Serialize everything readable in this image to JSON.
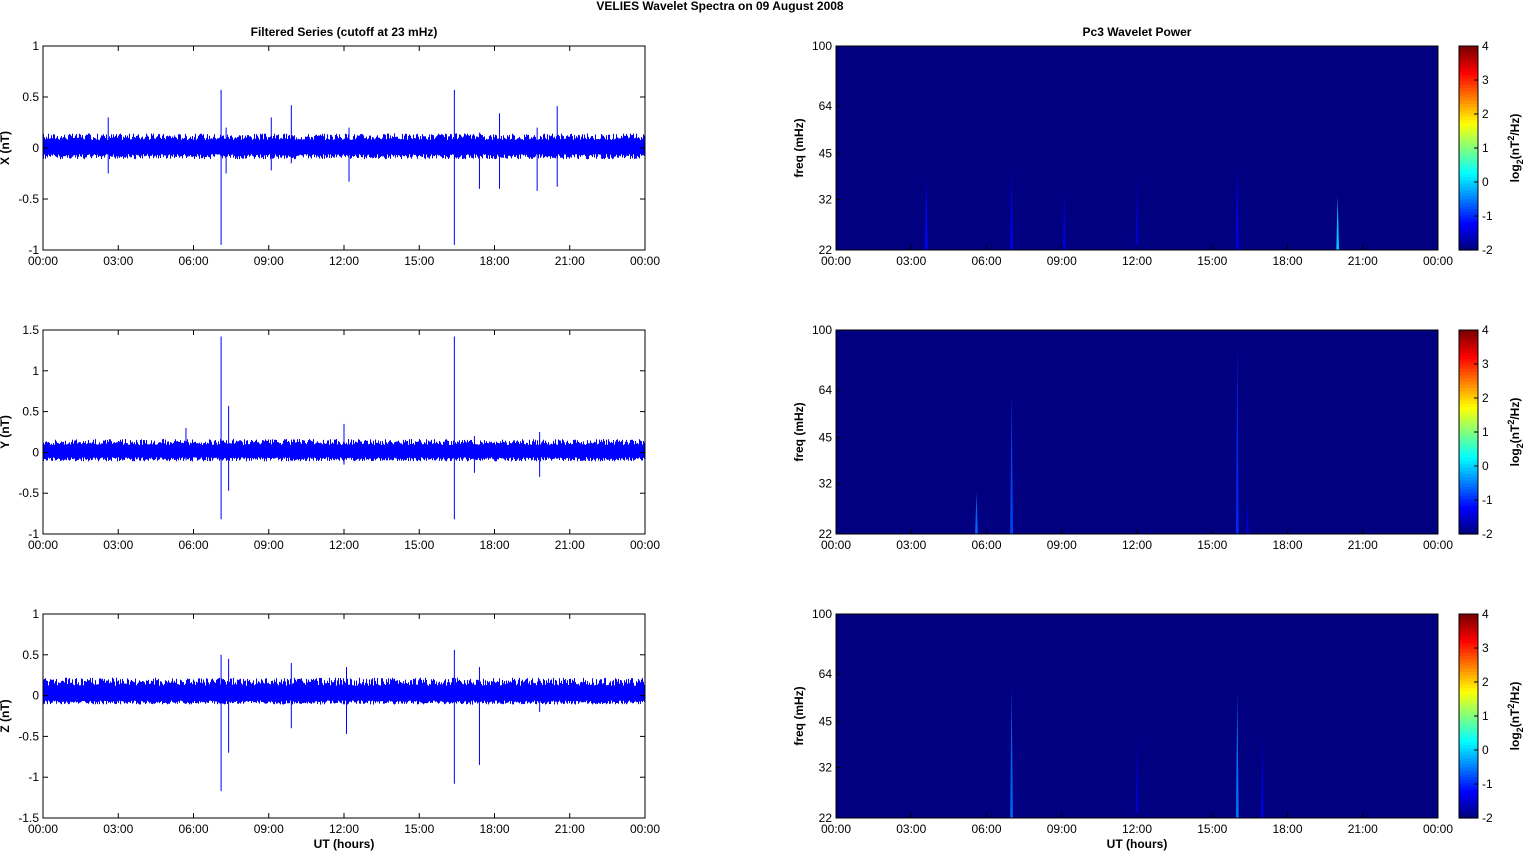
{
  "figure": {
    "suptitle": "VELIES Wavelet Spectra on 09 August    2008",
    "left_title": "Filtered Series (cutoff at 23 mHz)",
    "right_title": "Pc3 Wavelet Power",
    "xlabel": "UT (hours)",
    "time_ticks": [
      "00:00",
      "03:00",
      "06:00",
      "09:00",
      "12:00",
      "15:00",
      "18:00",
      "21:00",
      "00:00"
    ],
    "freq_ylabel": "freq (mHz)",
    "freq_ticks": [
      "100",
      "64",
      "45",
      "32",
      "22"
    ],
    "colorbar_label": "log2(nT2/Hz)",
    "colorbar_ticks": [
      "4",
      "3",
      "2",
      "1",
      "0",
      "-1",
      "-2"
    ],
    "colors": {
      "series": "#0000ff",
      "spectrum_background": "#00008f"
    }
  },
  "chart_data": [
    {
      "type": "line",
      "panel": "X",
      "ylabel": "X (nT)",
      "ylim": [
        -1,
        1
      ],
      "yticks": [
        "1",
        "0.5",
        "0",
        "-0.5",
        "-1"
      ],
      "xlim_hours": [
        0,
        24
      ],
      "noise_band": [
        -0.1,
        0.13
      ],
      "spikes": [
        {
          "t": 2.6,
          "max": 0.3,
          "min": -0.25
        },
        {
          "t": 7.1,
          "max": 0.57,
          "min": -0.95
        },
        {
          "t": 7.3,
          "max": 0.2,
          "min": -0.25
        },
        {
          "t": 9.1,
          "max": 0.3,
          "min": -0.22
        },
        {
          "t": 9.9,
          "max": 0.42,
          "min": -0.15
        },
        {
          "t": 12.2,
          "max": 0.2,
          "min": -0.33
        },
        {
          "t": 16.4,
          "max": 0.57,
          "min": -0.95
        },
        {
          "t": 17.4,
          "max": 0.15,
          "min": -0.4
        },
        {
          "t": 18.2,
          "max": 0.34,
          "min": -0.4
        },
        {
          "t": 19.7,
          "max": 0.2,
          "min": -0.42
        },
        {
          "t": 20.5,
          "max": 0.41,
          "min": -0.38
        }
      ]
    },
    {
      "type": "line",
      "panel": "Y",
      "ylabel": "Y (nT)",
      "ylim": [
        -1,
        1.5
      ],
      "yticks": [
        "1.5",
        "1",
        "0.5",
        "0",
        "-0.5",
        "-1"
      ],
      "xlim_hours": [
        0,
        24
      ],
      "noise_band": [
        -0.1,
        0.15
      ],
      "spikes": [
        {
          "t": 5.7,
          "max": 0.3,
          "min": -0.1
        },
        {
          "t": 7.1,
          "max": 1.42,
          "min": -0.82
        },
        {
          "t": 7.4,
          "max": 0.57,
          "min": -0.47
        },
        {
          "t": 12.0,
          "max": 0.35,
          "min": -0.15
        },
        {
          "t": 16.4,
          "max": 1.42,
          "min": -0.82
        },
        {
          "t": 17.2,
          "max": 0.2,
          "min": -0.25
        },
        {
          "t": 19.8,
          "max": 0.25,
          "min": -0.3
        }
      ]
    },
    {
      "type": "line",
      "panel": "Z",
      "ylabel": "Z (nT)",
      "ylim": [
        -1.5,
        1
      ],
      "yticks": [
        "1",
        "0.5",
        "0",
        "-0.5",
        "-1",
        "-1.5"
      ],
      "xlim_hours": [
        0,
        24
      ],
      "noise_band": [
        -0.1,
        0.2
      ],
      "spikes": [
        {
          "t": 7.1,
          "max": 0.5,
          "min": -1.17
        },
        {
          "t": 7.4,
          "max": 0.45,
          "min": -0.7
        },
        {
          "t": 9.9,
          "max": 0.4,
          "min": -0.4
        },
        {
          "t": 12.1,
          "max": 0.35,
          "min": -0.47
        },
        {
          "t": 16.4,
          "max": 0.56,
          "min": -1.08
        },
        {
          "t": 17.4,
          "max": 0.35,
          "min": -0.85
        },
        {
          "t": 19.8,
          "max": 0.2,
          "min": -0.2
        }
      ]
    },
    {
      "type": "heatmap",
      "panel": "X",
      "title": "Pc3 Wavelet Power",
      "ylabel": "freq (mHz)",
      "ylim_mHz": [
        22,
        100
      ],
      "clim": [
        -2,
        4
      ],
      "background_level": -2,
      "features": [
        {
          "t": 3.6,
          "fmax": 38,
          "level": -1.2
        },
        {
          "t": 7.0,
          "fmax": 40,
          "level": -1.3
        },
        {
          "t": 9.1,
          "fmax": 34,
          "level": -1.4
        },
        {
          "t": 12.0,
          "fmax": 38,
          "level": -1.5
        },
        {
          "t": 16.0,
          "fmax": 42,
          "level": -1.3
        },
        {
          "t": 20.0,
          "fmax": 33,
          "level": 0.0
        }
      ]
    },
    {
      "type": "heatmap",
      "panel": "Y",
      "ylabel": "freq (mHz)",
      "ylim_mHz": [
        22,
        100
      ],
      "clim": [
        -2,
        4
      ],
      "background_level": -2,
      "features": [
        {
          "t": 5.6,
          "fmax": 30,
          "level": -0.6
        },
        {
          "t": 7.0,
          "fmax": 62,
          "level": -0.8
        },
        {
          "t": 16.0,
          "fmax": 90,
          "level": -1.0
        },
        {
          "t": 16.4,
          "fmax": 28,
          "level": -1.5
        }
      ]
    },
    {
      "type": "heatmap",
      "panel": "Z",
      "ylabel": "freq (mHz)",
      "ylim_mHz": [
        22,
        100
      ],
      "clim": [
        -2,
        4
      ],
      "background_level": -2,
      "features": [
        {
          "t": 7.0,
          "fmax": 58,
          "level": -0.6
        },
        {
          "t": 12.0,
          "fmax": 40,
          "level": -1.5
        },
        {
          "t": 16.0,
          "fmax": 56,
          "level": -0.5
        },
        {
          "t": 17.0,
          "fmax": 40,
          "level": -1.4
        }
      ]
    }
  ]
}
